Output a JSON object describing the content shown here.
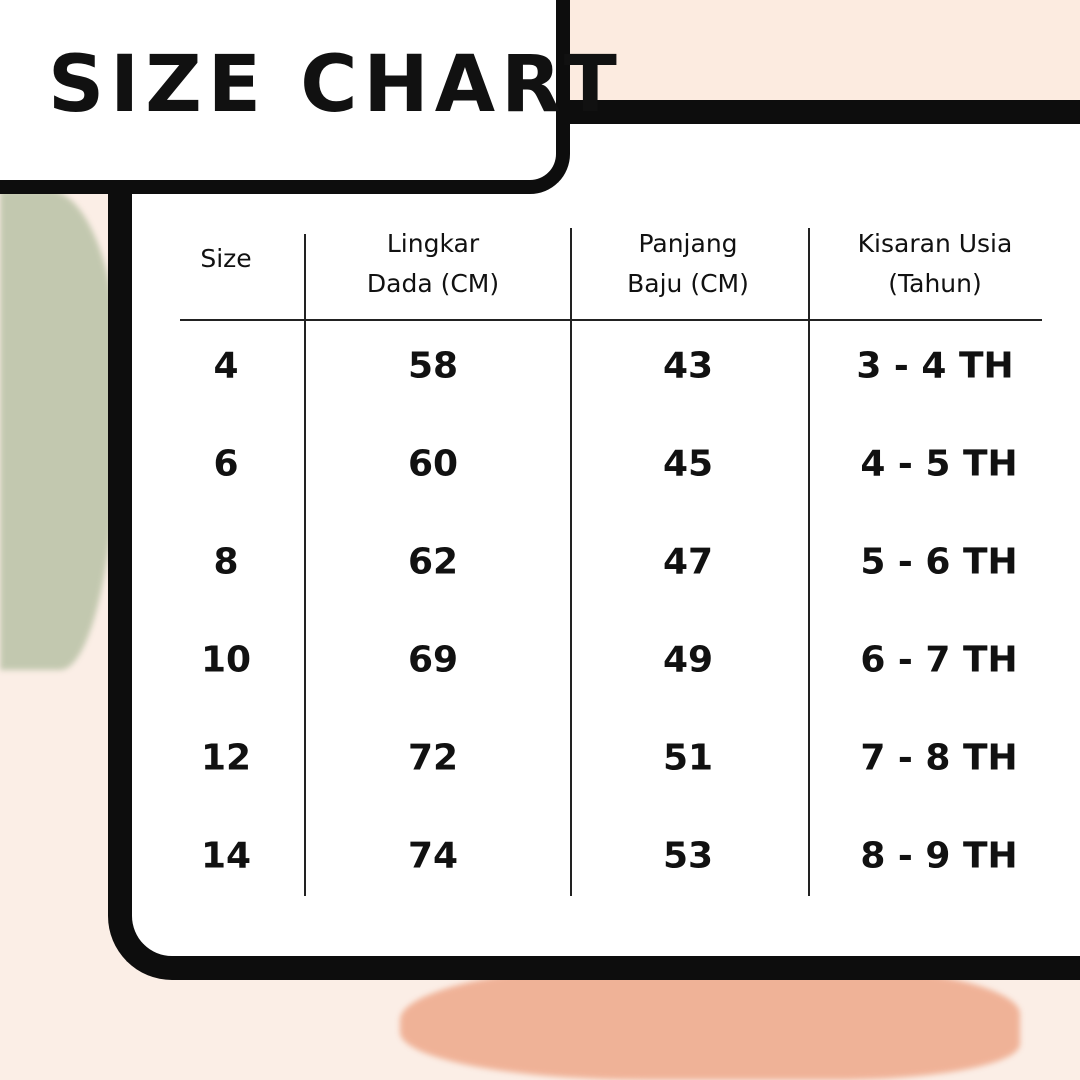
{
  "title": "SIZE CHART",
  "table": {
    "headers": [
      [
        "Size"
      ],
      [
        "Lingkar",
        "Dada (CM)"
      ],
      [
        "Panjang",
        "Baju (CM)"
      ],
      [
        "Kisaran Usia",
        "(Tahun)"
      ]
    ],
    "rows": [
      [
        "4",
        "58",
        "43",
        "3 - 4 TH"
      ],
      [
        "6",
        "60",
        "45",
        "4 - 5 TH"
      ],
      [
        "8",
        "62",
        "47",
        "5 - 6 TH"
      ],
      [
        "10",
        "69",
        "49",
        "6 - 7 TH"
      ],
      [
        "12",
        "72",
        "51",
        "7 - 8 TH"
      ],
      [
        "14",
        "74",
        "53",
        "8 - 9 TH"
      ]
    ]
  },
  "colors": {
    "background": "#fbeee6",
    "frame": "#0d0d0d",
    "accent_green": "#b9c2a6",
    "accent_orange": "#eea88a"
  }
}
